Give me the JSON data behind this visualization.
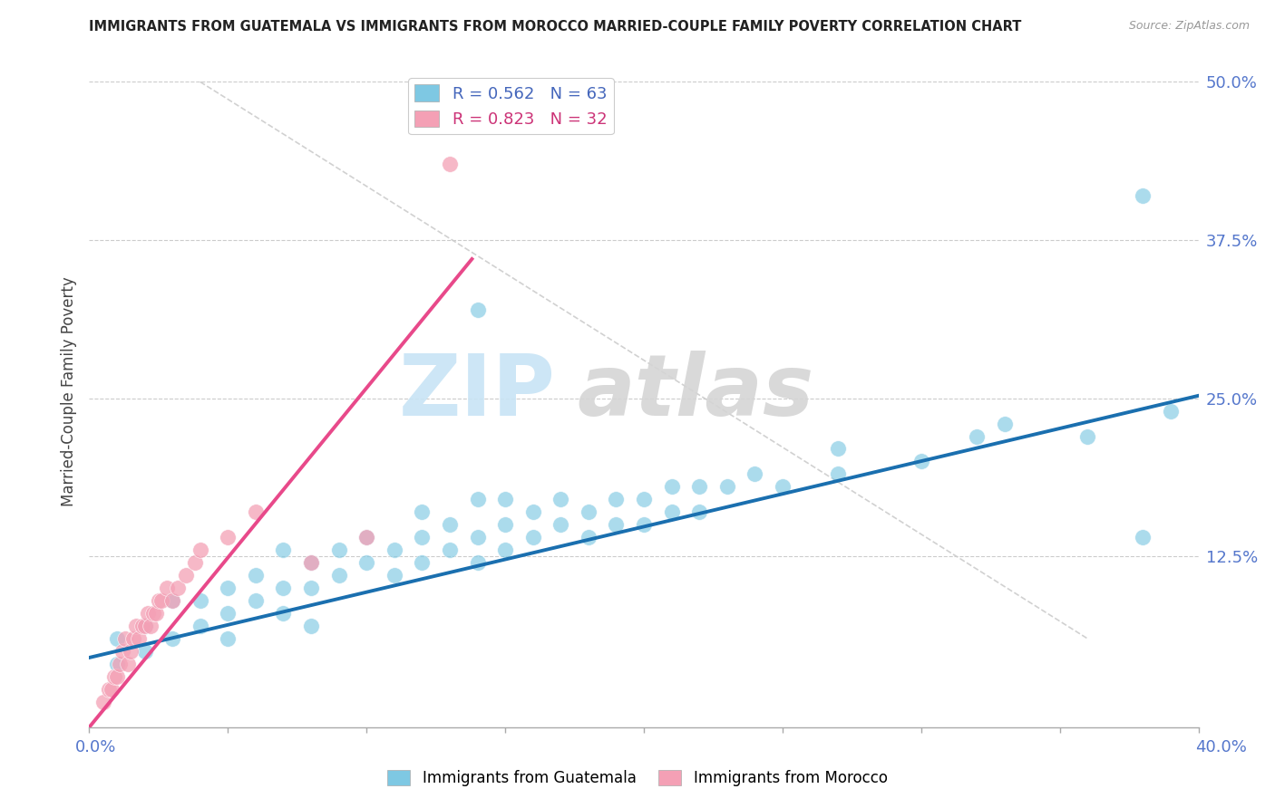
{
  "title": "IMMIGRANTS FROM GUATEMALA VS IMMIGRANTS FROM MOROCCO MARRIED-COUPLE FAMILY POVERTY CORRELATION CHART",
  "source": "Source: ZipAtlas.com",
  "ylabel": "Married-Couple Family Poverty",
  "xlim": [
    0.0,
    0.4
  ],
  "ylim": [
    -0.01,
    0.52
  ],
  "legend_blue_R": "R = 0.562",
  "legend_blue_N": "N = 63",
  "legend_pink_R": "R = 0.823",
  "legend_pink_N": "N = 32",
  "blue_color": "#7ec8e3",
  "pink_color": "#f4a0b5",
  "blue_line_color": "#1a6faf",
  "pink_line_color": "#e8498a",
  "legend_label_blue": "Immigrants from Guatemala",
  "legend_label_pink": "Immigrants from Morocco",
  "blue_x": [
    0.01,
    0.01,
    0.02,
    0.02,
    0.03,
    0.03,
    0.04,
    0.04,
    0.05,
    0.05,
    0.05,
    0.06,
    0.06,
    0.07,
    0.07,
    0.07,
    0.08,
    0.08,
    0.08,
    0.09,
    0.09,
    0.1,
    0.1,
    0.11,
    0.11,
    0.12,
    0.12,
    0.12,
    0.13,
    0.13,
    0.14,
    0.14,
    0.14,
    0.15,
    0.15,
    0.15,
    0.16,
    0.16,
    0.17,
    0.17,
    0.18,
    0.18,
    0.19,
    0.19,
    0.2,
    0.2,
    0.21,
    0.21,
    0.22,
    0.22,
    0.23,
    0.24,
    0.25,
    0.27,
    0.27,
    0.3,
    0.32,
    0.33,
    0.36,
    0.38,
    0.38,
    0.39,
    0.14
  ],
  "blue_y": [
    0.04,
    0.06,
    0.05,
    0.07,
    0.06,
    0.09,
    0.07,
    0.09,
    0.08,
    0.1,
    0.06,
    0.09,
    0.11,
    0.08,
    0.1,
    0.13,
    0.1,
    0.12,
    0.07,
    0.11,
    0.13,
    0.12,
    0.14,
    0.11,
    0.13,
    0.12,
    0.14,
    0.16,
    0.13,
    0.15,
    0.12,
    0.14,
    0.17,
    0.13,
    0.15,
    0.17,
    0.14,
    0.16,
    0.15,
    0.17,
    0.14,
    0.16,
    0.15,
    0.17,
    0.15,
    0.17,
    0.16,
    0.18,
    0.16,
    0.18,
    0.18,
    0.19,
    0.18,
    0.19,
    0.21,
    0.2,
    0.22,
    0.23,
    0.22,
    0.14,
    0.41,
    0.24,
    0.32
  ],
  "pink_x": [
    0.005,
    0.007,
    0.008,
    0.009,
    0.01,
    0.011,
    0.012,
    0.013,
    0.014,
    0.015,
    0.016,
    0.017,
    0.018,
    0.019,
    0.02,
    0.021,
    0.022,
    0.023,
    0.024,
    0.025,
    0.026,
    0.028,
    0.03,
    0.032,
    0.035,
    0.038,
    0.04,
    0.05,
    0.06,
    0.08,
    0.1,
    0.13
  ],
  "pink_y": [
    0.01,
    0.02,
    0.02,
    0.03,
    0.03,
    0.04,
    0.05,
    0.06,
    0.04,
    0.05,
    0.06,
    0.07,
    0.06,
    0.07,
    0.07,
    0.08,
    0.07,
    0.08,
    0.08,
    0.09,
    0.09,
    0.1,
    0.09,
    0.1,
    0.11,
    0.12,
    0.13,
    0.14,
    0.16,
    0.12,
    0.14,
    0.435
  ],
  "blue_line_x": [
    0.0,
    0.4
  ],
  "blue_line_y": [
    0.045,
    0.252
  ],
  "pink_line_x": [
    0.0,
    0.138
  ],
  "pink_line_y": [
    -0.01,
    0.36
  ],
  "diag_line_x": [
    0.05,
    0.4
  ],
  "diag_line_y": [
    0.5,
    0.08
  ]
}
